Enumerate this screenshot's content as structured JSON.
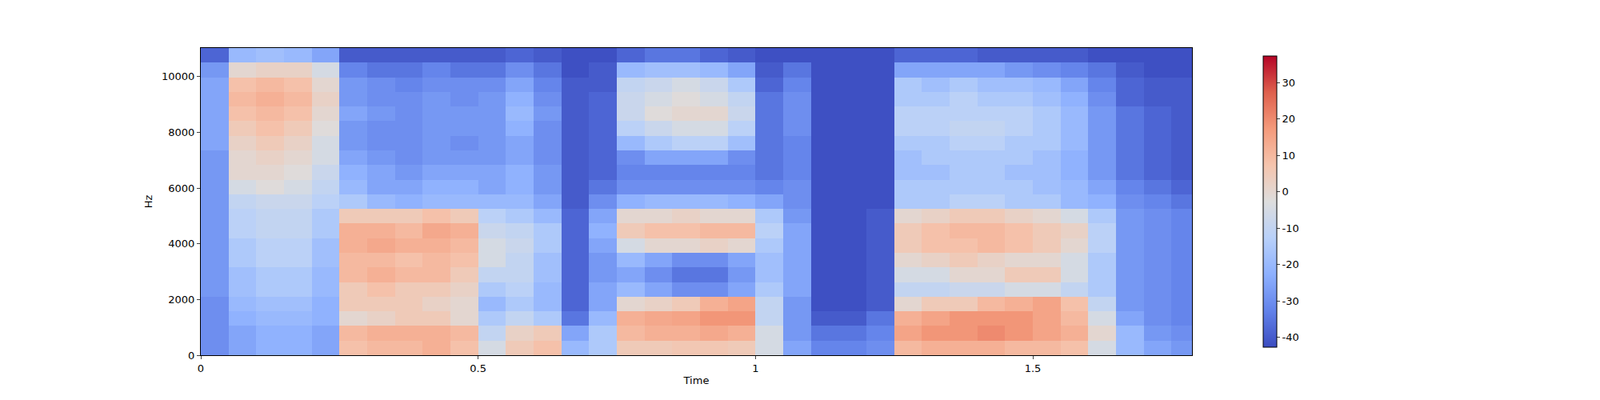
{
  "chart_data": {
    "type": "heatmap",
    "x_label": "Time",
    "y_label": "Hz",
    "x": [
      0.025,
      0.075,
      0.125,
      0.175,
      0.225,
      0.275,
      0.325,
      0.375,
      0.425,
      0.475,
      0.525,
      0.575,
      0.625,
      0.675,
      0.725,
      0.775,
      0.825,
      0.875,
      0.925,
      0.975,
      1.025,
      1.075,
      1.125,
      1.175,
      1.225,
      1.275,
      1.325,
      1.375,
      1.425,
      1.475,
      1.525,
      1.575,
      1.625,
      1.675,
      1.725,
      1.775
    ],
    "y": [
      262.5,
      787.5,
      1312.5,
      1837.5,
      2362.5,
      2887.5,
      3412.5,
      3937.5,
      4462.5,
      4987.5,
      5512.5,
      6037.5,
      6562.5,
      7087.5,
      7612.5,
      8137.5,
      8662.5,
      9187.5,
      9712.5,
      10237.5,
      10762.5
    ],
    "z": [
      [
        -30,
        -25,
        -22,
        -22,
        -25,
        8,
        10,
        10,
        12,
        8,
        -5,
        5,
        8,
        -20,
        -15,
        5,
        5,
        6,
        6,
        5,
        -5,
        -25,
        -32,
        -32,
        -30,
        10,
        12,
        12,
        12,
        10,
        10,
        8,
        -5,
        -20,
        -25,
        -28
      ],
      [
        -30,
        -25,
        -22,
        -22,
        -25,
        10,
        12,
        12,
        12,
        10,
        -10,
        2,
        5,
        -25,
        -15,
        10,
        12,
        12,
        14,
        12,
        -5,
        -28,
        -35,
        -35,
        -32,
        15,
        18,
        18,
        20,
        18,
        15,
        12,
        0,
        -20,
        -28,
        -30
      ],
      [
        -30,
        -22,
        -20,
        -20,
        -22,
        0,
        2,
        5,
        5,
        0,
        -15,
        -10,
        -15,
        -35,
        -20,
        12,
        14,
        15,
        18,
        18,
        -10,
        -28,
        -40,
        -40,
        -35,
        12,
        15,
        18,
        18,
        18,
        15,
        10,
        -5,
        -25,
        -30,
        -32
      ],
      [
        -30,
        -20,
        -18,
        -18,
        -22,
        5,
        5,
        5,
        2,
        0,
        -20,
        -15,
        -20,
        -38,
        -25,
        0,
        2,
        5,
        12,
        15,
        -10,
        -28,
        -42,
        -42,
        -40,
        0,
        5,
        5,
        10,
        12,
        15,
        8,
        -10,
        -28,
        -30,
        -32
      ],
      [
        -28,
        -18,
        -15,
        -15,
        -20,
        5,
        8,
        5,
        5,
        2,
        -15,
        -12,
        -20,
        -38,
        -25,
        -20,
        -25,
        -30,
        -30,
        -25,
        -15,
        -25,
        -42,
        -42,
        -40,
        -10,
        -10,
        -8,
        -8,
        -5,
        -5,
        -10,
        -15,
        -28,
        -30,
        -32
      ],
      [
        -28,
        -18,
        -15,
        -15,
        -20,
        10,
        12,
        10,
        10,
        5,
        -10,
        -10,
        -18,
        -38,
        -28,
        -25,
        -30,
        -35,
        -35,
        -28,
        -18,
        -25,
        -42,
        -42,
        -40,
        -5,
        -5,
        0,
        0,
        5,
        5,
        -5,
        -15,
        -28,
        -30,
        -32
      ],
      [
        -28,
        -15,
        -12,
        -12,
        -18,
        10,
        10,
        8,
        10,
        8,
        -5,
        -10,
        -18,
        -38,
        -28,
        -20,
        -25,
        -30,
        -30,
        -25,
        -18,
        -25,
        -42,
        -42,
        -40,
        0,
        2,
        5,
        2,
        0,
        0,
        -5,
        -15,
        -28,
        -30,
        -32
      ],
      [
        -28,
        -15,
        -12,
        -12,
        -18,
        12,
        14,
        12,
        12,
        10,
        -5,
        -8,
        -15,
        -38,
        -25,
        -5,
        0,
        0,
        2,
        0,
        -15,
        -25,
        -42,
        -42,
        -40,
        5,
        8,
        8,
        10,
        8,
        5,
        0,
        -12,
        -28,
        -30,
        -32
      ],
      [
        -28,
        -12,
        -10,
        -10,
        -15,
        12,
        12,
        10,
        14,
        12,
        -8,
        -10,
        -15,
        -38,
        -22,
        5,
        8,
        8,
        10,
        10,
        -12,
        -25,
        -42,
        -42,
        -40,
        5,
        8,
        10,
        10,
        8,
        5,
        2,
        -12,
        -28,
        -30,
        -32
      ],
      [
        -28,
        -12,
        -10,
        -10,
        -15,
        5,
        5,
        5,
        8,
        5,
        -12,
        -15,
        -20,
        -38,
        -25,
        0,
        0,
        2,
        0,
        0,
        -15,
        -28,
        -42,
        -42,
        -40,
        0,
        2,
        5,
        5,
        2,
        0,
        -5,
        -15,
        -28,
        -30,
        -32
      ],
      [
        -28,
        -10,
        -8,
        -8,
        -12,
        -15,
        -20,
        -22,
        -20,
        -20,
        -20,
        -20,
        -25,
        -40,
        -30,
        -22,
        -20,
        -20,
        -20,
        -22,
        -25,
        -30,
        -42,
        -42,
        -42,
        -15,
        -15,
        -12,
        -12,
        -15,
        -15,
        -20,
        -22,
        -30,
        -32,
        -35
      ],
      [
        -28,
        -5,
        -2,
        -5,
        -10,
        -20,
        -25,
        -25,
        -22,
        -22,
        -25,
        -22,
        -28,
        -40,
        -35,
        -30,
        -30,
        -30,
        -30,
        -30,
        -32,
        -30,
        -42,
        -42,
        -42,
        -15,
        -15,
        -15,
        -15,
        -15,
        -18,
        -20,
        -25,
        -32,
        -35,
        -38
      ],
      [
        -28,
        0,
        0,
        -2,
        -8,
        -22,
        -25,
        -28,
        -25,
        -25,
        -25,
        -22,
        -28,
        -40,
        -38,
        -32,
        -32,
        -32,
        -32,
        -32,
        -35,
        -32,
        -42,
        -42,
        -42,
        -18,
        -18,
        -15,
        -15,
        -18,
        -18,
        -22,
        -28,
        -35,
        -38,
        -40
      ],
      [
        -28,
        0,
        2,
        0,
        -5,
        -25,
        -28,
        -30,
        -28,
        -28,
        -28,
        -25,
        -30,
        -40,
        -38,
        -30,
        -25,
        -25,
        -25,
        -30,
        -35,
        -32,
        -42,
        -42,
        -42,
        -18,
        -15,
        -15,
        -15,
        -15,
        -18,
        -22,
        -28,
        -35,
        -38,
        -40
      ],
      [
        -25,
        2,
        5,
        2,
        -5,
        -28,
        -30,
        -30,
        -28,
        -30,
        -28,
        -25,
        -30,
        -40,
        -38,
        -20,
        -15,
        -12,
        -12,
        -18,
        -35,
        -32,
        -42,
        -42,
        -42,
        -15,
        -15,
        -12,
        -12,
        -15,
        -15,
        -20,
        -28,
        -35,
        -38,
        -40
      ],
      [
        -25,
        5,
        8,
        5,
        -2,
        -28,
        -30,
        -30,
        -28,
        -28,
        -28,
        -22,
        -30,
        -40,
        -38,
        -12,
        -8,
        -5,
        -5,
        -12,
        -35,
        -30,
        -42,
        -42,
        -42,
        -12,
        -12,
        -10,
        -10,
        -12,
        -15,
        -20,
        -28,
        -35,
        -38,
        -40
      ],
      [
        -25,
        8,
        10,
        8,
        0,
        -25,
        -28,
        -30,
        -28,
        -28,
        -28,
        -20,
        -28,
        -40,
        -38,
        -8,
        -2,
        0,
        0,
        -8,
        -35,
        -30,
        -42,
        -42,
        -42,
        -12,
        -12,
        -12,
        -12,
        -12,
        -15,
        -20,
        -28,
        -35,
        -38,
        -40
      ],
      [
        -25,
        10,
        12,
        10,
        2,
        -28,
        -30,
        -30,
        -28,
        -30,
        -28,
        -22,
        -30,
        -40,
        -38,
        -8,
        -5,
        -2,
        -5,
        -10,
        -35,
        -30,
        -42,
        -42,
        -42,
        -15,
        -15,
        -12,
        -15,
        -15,
        -18,
        -22,
        -30,
        -38,
        -40,
        -40
      ],
      [
        -25,
        8,
        10,
        8,
        0,
        -28,
        -30,
        -32,
        -30,
        -30,
        -30,
        -25,
        -32,
        -40,
        -40,
        -10,
        -8,
        -5,
        -8,
        -15,
        -38,
        -32,
        -42,
        -42,
        -42,
        -15,
        -18,
        -15,
        -18,
        -18,
        -20,
        -25,
        -32,
        -38,
        -40,
        -40
      ],
      [
        -28,
        0,
        2,
        2,
        -5,
        -32,
        -35,
        -35,
        -32,
        -35,
        -35,
        -30,
        -35,
        -42,
        -40,
        -20,
        -18,
        -18,
        -20,
        -25,
        -40,
        -35,
        -42,
        -42,
        -42,
        -25,
        -25,
        -25,
        -25,
        -28,
        -30,
        -32,
        -35,
        -40,
        -42,
        -42
      ],
      [
        -38,
        -20,
        -18,
        -20,
        -25,
        -40,
        -40,
        -40,
        -40,
        -40,
        -40,
        -38,
        -40,
        -42,
        -42,
        -38,
        -35,
        -35,
        -38,
        -40,
        -42,
        -42,
        -42,
        -42,
        -42,
        -38,
        -38,
        -38,
        -40,
        -40,
        -40,
        -40,
        -42,
        -42,
        -42,
        -42
      ]
    ],
    "xlim": [
      0,
      1.787
    ],
    "ylim": [
      0,
      11025
    ],
    "xticks": [
      0,
      0.5,
      1,
      1.5
    ],
    "yticks": [
      0,
      2000,
      4000,
      6000,
      8000,
      10000
    ],
    "colorbar_range": [
      -42.7,
      37.3
    ],
    "colorbar_ticks": [
      -40,
      -30,
      -20,
      -10,
      0,
      10,
      20,
      30
    ]
  }
}
